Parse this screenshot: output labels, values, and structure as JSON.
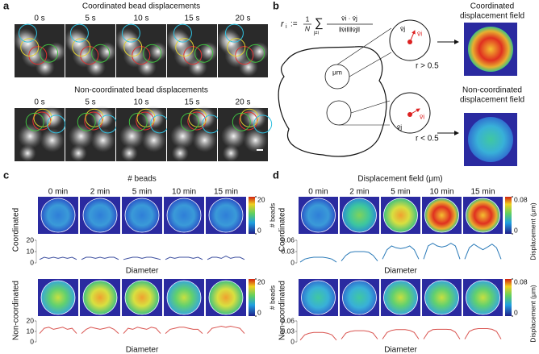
{
  "panel_a": {
    "label": "a",
    "rows": [
      {
        "title": "Coordinated bead displacements",
        "times": [
          "0 s",
          "5 s",
          "10 s",
          "15 s",
          "20 s"
        ]
      },
      {
        "title": "Non-coordinated bead displacements",
        "times": [
          "0 s",
          "5 s",
          "10 s",
          "15 s",
          "20 s"
        ]
      }
    ]
  },
  "panel_b": {
    "label": "b",
    "formula": {
      "lhs": "r",
      "lhs_sub": "i",
      "def": ":=",
      "num": "1",
      "den": "N",
      "sum": "∑",
      "sum_sub": "j≠i",
      "frac_num": "v̄i · v̄j",
      "frac_den": "‖v̄i‖‖v̄j‖"
    },
    "unit": "μm",
    "vector_i": "v̄i",
    "vector_j": "v̄j",
    "upper": {
      "threshold": "r > 0.5",
      "caption": [
        "Coordinated",
        "displacement field"
      ]
    },
    "lower": {
      "threshold": "r < 0.5",
      "caption": [
        "Non-coordinated",
        "displacement field"
      ]
    }
  },
  "panel_c": {
    "label": "c",
    "title": "# beads",
    "times": [
      "0 min",
      "2 min",
      "5 min",
      "10 min",
      "15 min"
    ],
    "xlabel": "Diameter",
    "colorbar_label": "# beads",
    "rows": [
      {
        "name": "Coordinated",
        "color": "#3d4f9f",
        "ylim": [
          0,
          20
        ],
        "yticks": [
          0,
          10,
          20
        ],
        "colorbar_ticks": [
          0,
          20
        ],
        "profiles": [
          [
            3,
            5,
            4,
            5,
            4,
            5,
            4,
            5,
            3
          ],
          [
            3,
            5,
            5,
            4,
            5,
            4,
            5,
            5,
            3
          ],
          [
            3,
            4,
            5,
            5,
            4,
            5,
            5,
            4,
            3
          ],
          [
            3,
            5,
            4,
            5,
            5,
            5,
            4,
            5,
            3
          ],
          [
            3,
            5,
            5,
            4,
            6,
            4,
            5,
            5,
            3
          ]
        ]
      },
      {
        "name": "Non-coordinated",
        "color": "#d9534f",
        "ylim": [
          0,
          20
        ],
        "yticks": [
          0,
          10,
          20
        ],
        "colorbar_ticks": [
          0,
          20
        ],
        "profiles": [
          [
            8,
            13,
            14,
            12,
            13,
            14,
            12,
            13,
            8
          ],
          [
            8,
            12,
            14,
            13,
            12,
            13,
            14,
            12,
            8
          ],
          [
            8,
            13,
            12,
            14,
            13,
            12,
            14,
            13,
            8
          ],
          [
            8,
            12,
            13,
            14,
            14,
            13,
            12,
            12,
            8
          ],
          [
            8,
            13,
            14,
            15,
            14,
            15,
            14,
            13,
            8
          ]
        ]
      }
    ]
  },
  "panel_d": {
    "label": "d",
    "title": "Displacement field (μm)",
    "times": [
      "0 min",
      "2 min",
      "5 min",
      "10 min",
      "15 min"
    ],
    "xlabel": "Diameter",
    "colorbar_label": "Displacement (μm)",
    "rows": [
      {
        "name": "Coordinated",
        "color": "#2a7ab8",
        "ylim": [
          0,
          0.06
        ],
        "yticks": [
          0,
          0.03,
          0.06
        ],
        "colorbar_ticks": [
          0,
          0.08
        ],
        "profiles": [
          [
            0.002,
            0.01,
            0.013,
            0.015,
            0.015,
            0.015,
            0.013,
            0.01,
            0.002
          ],
          [
            0.005,
            0.02,
            0.028,
            0.03,
            0.03,
            0.03,
            0.028,
            0.02,
            0.005
          ],
          [
            0.01,
            0.035,
            0.045,
            0.04,
            0.038,
            0.04,
            0.045,
            0.035,
            0.01
          ],
          [
            0.01,
            0.045,
            0.052,
            0.045,
            0.042,
            0.045,
            0.052,
            0.045,
            0.01
          ],
          [
            0.01,
            0.04,
            0.05,
            0.042,
            0.035,
            0.042,
            0.05,
            0.04,
            0.01
          ]
        ]
      },
      {
        "name": "Non-coordinated",
        "color": "#d9534f",
        "ylim": [
          0,
          0.06
        ],
        "yticks": [
          0,
          0.03,
          0.06
        ],
        "colorbar_ticks": [
          0,
          0.08
        ],
        "profiles": [
          [
            0.005,
            0.02,
            0.025,
            0.027,
            0.027,
            0.027,
            0.025,
            0.02,
            0.005
          ],
          [
            0.008,
            0.025,
            0.03,
            0.032,
            0.032,
            0.032,
            0.03,
            0.025,
            0.008
          ],
          [
            0.008,
            0.027,
            0.033,
            0.035,
            0.035,
            0.035,
            0.033,
            0.027,
            0.008
          ],
          [
            0.008,
            0.028,
            0.035,
            0.036,
            0.036,
            0.036,
            0.035,
            0.028,
            0.008
          ],
          [
            0.008,
            0.03,
            0.036,
            0.038,
            0.038,
            0.038,
            0.036,
            0.03,
            0.008
          ]
        ]
      }
    ]
  }
}
